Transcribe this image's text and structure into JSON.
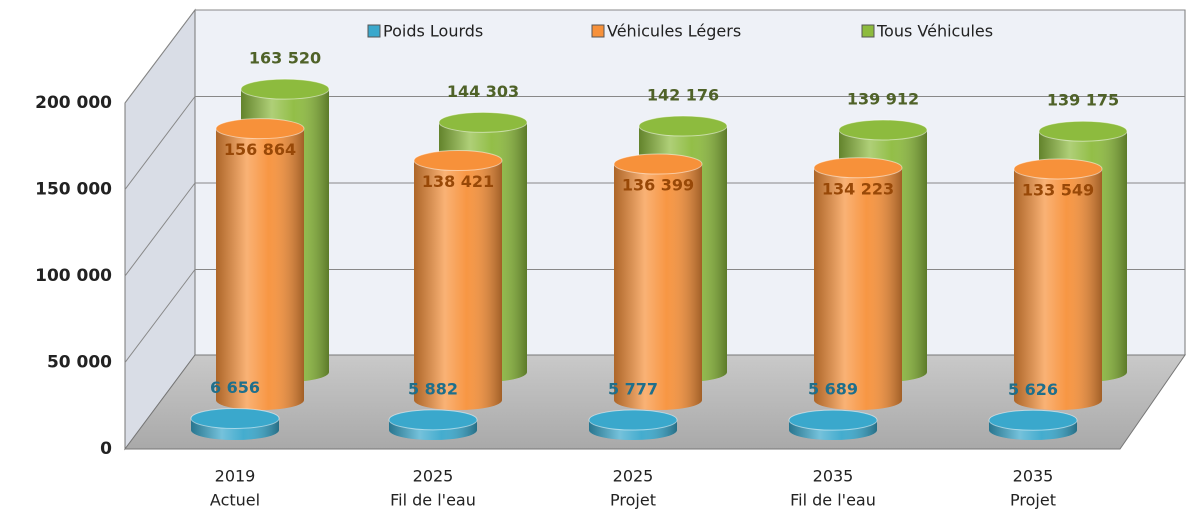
{
  "chart_data": {
    "type": "cylinder3d",
    "categories": [
      [
        "2019",
        "Actuel"
      ],
      [
        "2025",
        "Fil de l'eau"
      ],
      [
        "2025",
        "Projet"
      ],
      [
        "2035",
        "Fil de l'eau"
      ],
      [
        "2035",
        "Projet"
      ]
    ],
    "series": [
      {
        "name": "Poids Lourds",
        "color": "#3aa8cc",
        "label_color": "#1f6f8b",
        "values": [
          6656,
          5882,
          5777,
          5689,
          5626
        ],
        "value_labels": [
          "6 656",
          "5 882",
          "5 777",
          "5 689",
          "5 626"
        ]
      },
      {
        "name": "Véhicules Légers",
        "color": "#f7913a",
        "label_color": "#984807",
        "values": [
          156864,
          138421,
          136399,
          134223,
          133549
        ],
        "value_labels": [
          "156 864",
          "138 421",
          "136 399",
          "134 223",
          "133 549"
        ]
      },
      {
        "name": "Tous Véhicules",
        "color": "#8dbb3e",
        "label_color": "#4f6228",
        "values": [
          163520,
          144303,
          142176,
          139912,
          139175
        ],
        "value_labels": [
          "163 520",
          "144 303",
          "142 176",
          "139 912",
          "139 175"
        ]
      }
    ],
    "ylim": [
      0,
      200000
    ],
    "yticks": [
      0,
      {
        "value": 50000,
        "label": "50 000"
      },
      {
        "value": 100000,
        "label": "100 000"
      },
      {
        "value": 150000,
        "label": "150 000"
      },
      {
        "value": 200000,
        "label": "200 000"
      }
    ],
    "grid": true,
    "legend": "top"
  }
}
